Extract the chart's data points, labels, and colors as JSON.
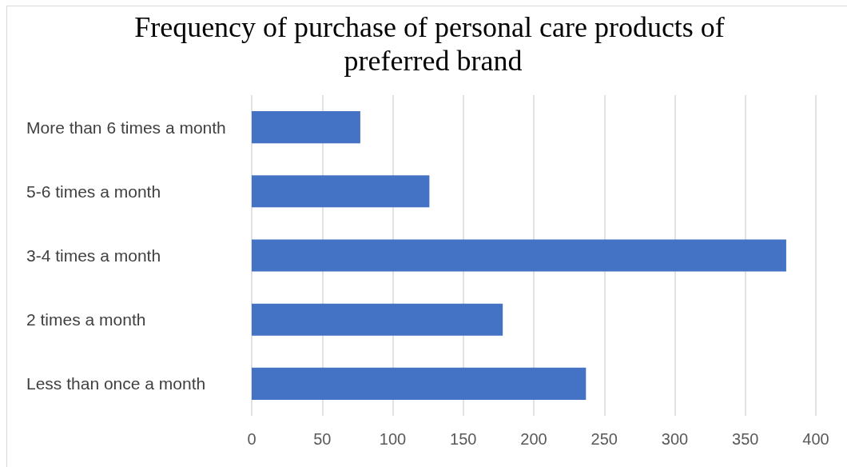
{
  "chart_data": {
    "type": "bar",
    "title": "Frequency of purchase of personal care products of preferred brand",
    "categories": [
      "More than 6 times a month",
      "5-6 times a month",
      "3-4 times a month",
      "2 times a month",
      "Less than once a month"
    ],
    "values": [
      77,
      126,
      379,
      178,
      237
    ],
    "color": "#4472c4",
    "orientation": "horizontal",
    "xlim": [
      0,
      400
    ],
    "xticks": [
      0,
      50,
      100,
      150,
      200,
      250,
      300,
      350,
      400
    ],
    "grid": "x"
  }
}
